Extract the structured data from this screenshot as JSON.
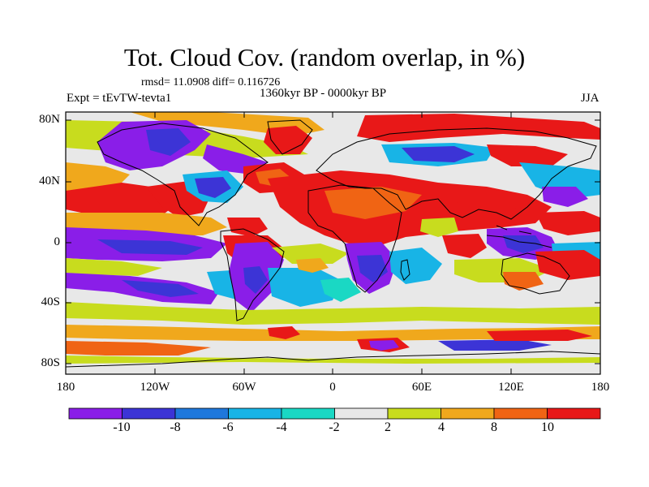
{
  "title": "Tot. Cloud Cov. (random overlap, in %)",
  "stats": "rmsd= 11.0908 diff= 0.116726",
  "period": "1360kyr BP - 0000kyr BP",
  "experiment": "Expt = tEvTW-tevta1",
  "season": "JJA",
  "lat_labels": [
    "80N",
    "40N",
    "0",
    "40S",
    "80S"
  ],
  "lon_labels": [
    "180",
    "120W",
    "60W",
    "0",
    "60E",
    "120E",
    "180"
  ],
  "colorbar": {
    "labels": [
      "-10",
      "-8",
      "-6",
      "-4",
      "-2",
      "2",
      "4",
      "8",
      "10"
    ],
    "colors": [
      "#8a1ee8",
      "#3c34d6",
      "#1f78dc",
      "#18b4e6",
      "#1ad8c4",
      "#e8e8e8",
      "#c8dc1e",
      "#f0a81c",
      "#f06414",
      "#e81818"
    ]
  },
  "palette": {
    "strong_negative": "#8a1ee8",
    "negative": "#3c34d6",
    "neutral": "#e8e8e8",
    "positive": "#f0a81c",
    "strong_positive": "#e81818"
  }
}
